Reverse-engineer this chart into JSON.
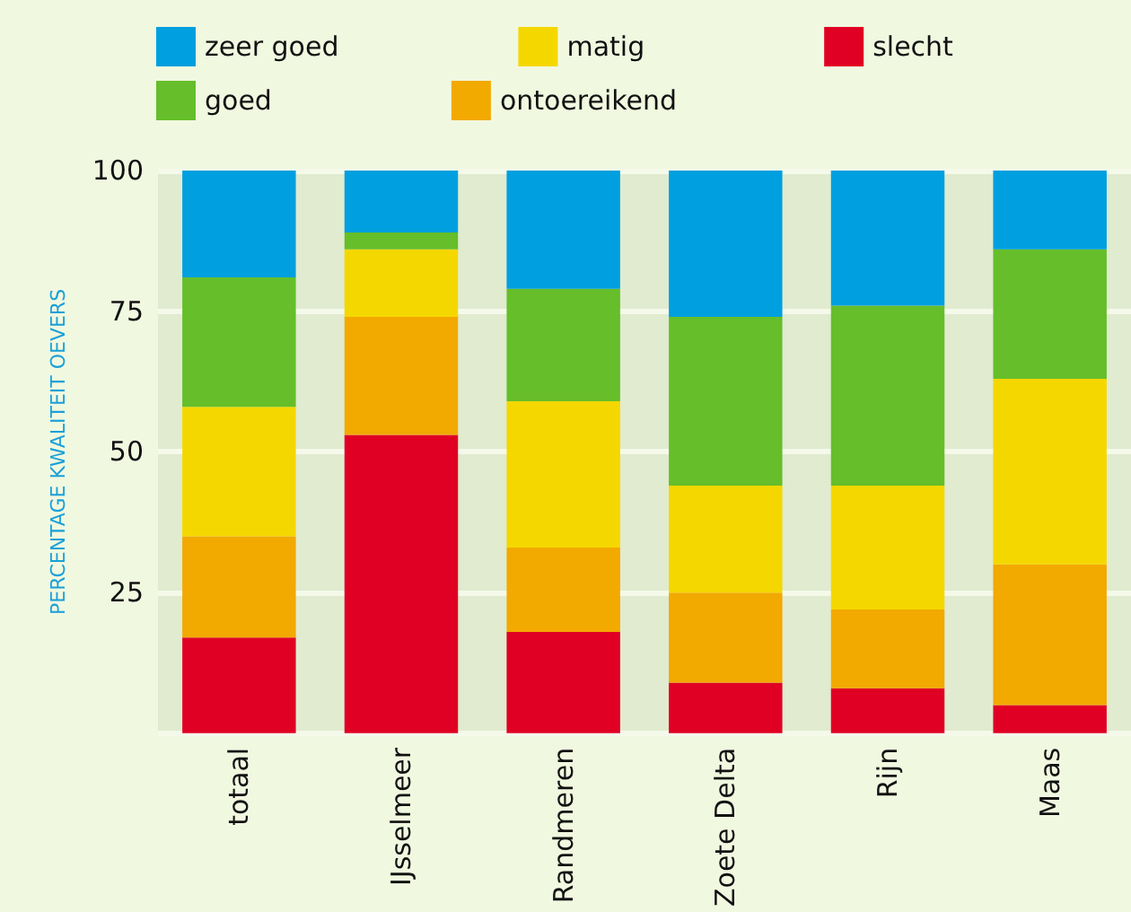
{
  "chart_data": {
    "type": "bar",
    "stacked": true,
    "ylabel": "PERCENTAGE KWALITEIT OEVERS",
    "categories": [
      "totaal",
      "IJsselmeer",
      "Randmeren",
      "Zoete Delta",
      "Rijn",
      "Maas"
    ],
    "series": [
      {
        "name": "slecht",
        "color": "#e00024",
        "values": [
          17,
          53,
          18,
          9,
          8,
          5
        ]
      },
      {
        "name": "ontoereikend",
        "color": "#f2a900",
        "values": [
          18,
          21,
          15,
          16,
          14,
          25
        ]
      },
      {
        "name": "matig",
        "color": "#f5d700",
        "values": [
          23,
          12,
          26,
          19,
          22,
          33
        ]
      },
      {
        "name": "goed",
        "color": "#65be2a",
        "values": [
          23,
          3,
          20,
          30,
          32,
          23
        ]
      },
      {
        "name": "zeer goed",
        "color": "#009fdf",
        "values": [
          19,
          11,
          21,
          26,
          24,
          14
        ]
      }
    ],
    "ylim": [
      0,
      100
    ],
    "yticks": [
      {
        "value": 0,
        "label": null
      },
      25,
      50,
      75,
      100
    ],
    "grid": "y",
    "legend": "top"
  }
}
